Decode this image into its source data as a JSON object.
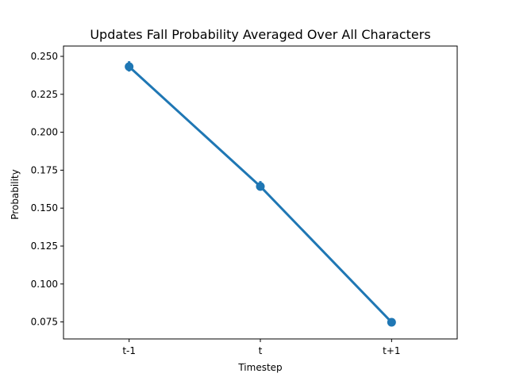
{
  "chart_data": {
    "type": "line",
    "title": "Updates Fall Probability Averaged Over All Characters",
    "xlabel": "Timestep",
    "ylabel": "Probability",
    "categories": [
      "t-1",
      "t",
      "t+1"
    ],
    "series": [
      {
        "values": [
          0.2432,
          0.1643,
          0.0748
        ],
        "error_low": [
          0.24,
          0.1615,
          0.0728
        ],
        "error_high": [
          0.2468,
          0.1678,
          0.0772
        ],
        "color": "#1f77b4"
      }
    ],
    "ylim": [
      0.0638,
      0.2568
    ],
    "yticks": [
      "0.250",
      "0.225",
      "0.200",
      "0.175",
      "0.150",
      "0.125",
      "0.100",
      "0.075"
    ],
    "grid": false,
    "legend": "none"
  }
}
